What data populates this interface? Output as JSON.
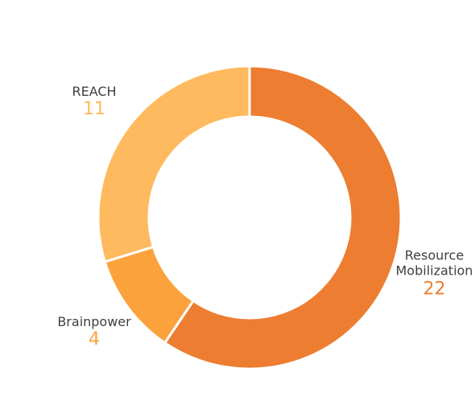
{
  "chart_data": {
    "type": "donut",
    "categories": [
      "Resource Mobilization",
      "Brainpower",
      "REACH"
    ],
    "values": [
      22,
      4,
      11
    ],
    "colors": [
      "#ED7D31",
      "#FBA23C",
      "#FFB95E"
    ]
  }
}
